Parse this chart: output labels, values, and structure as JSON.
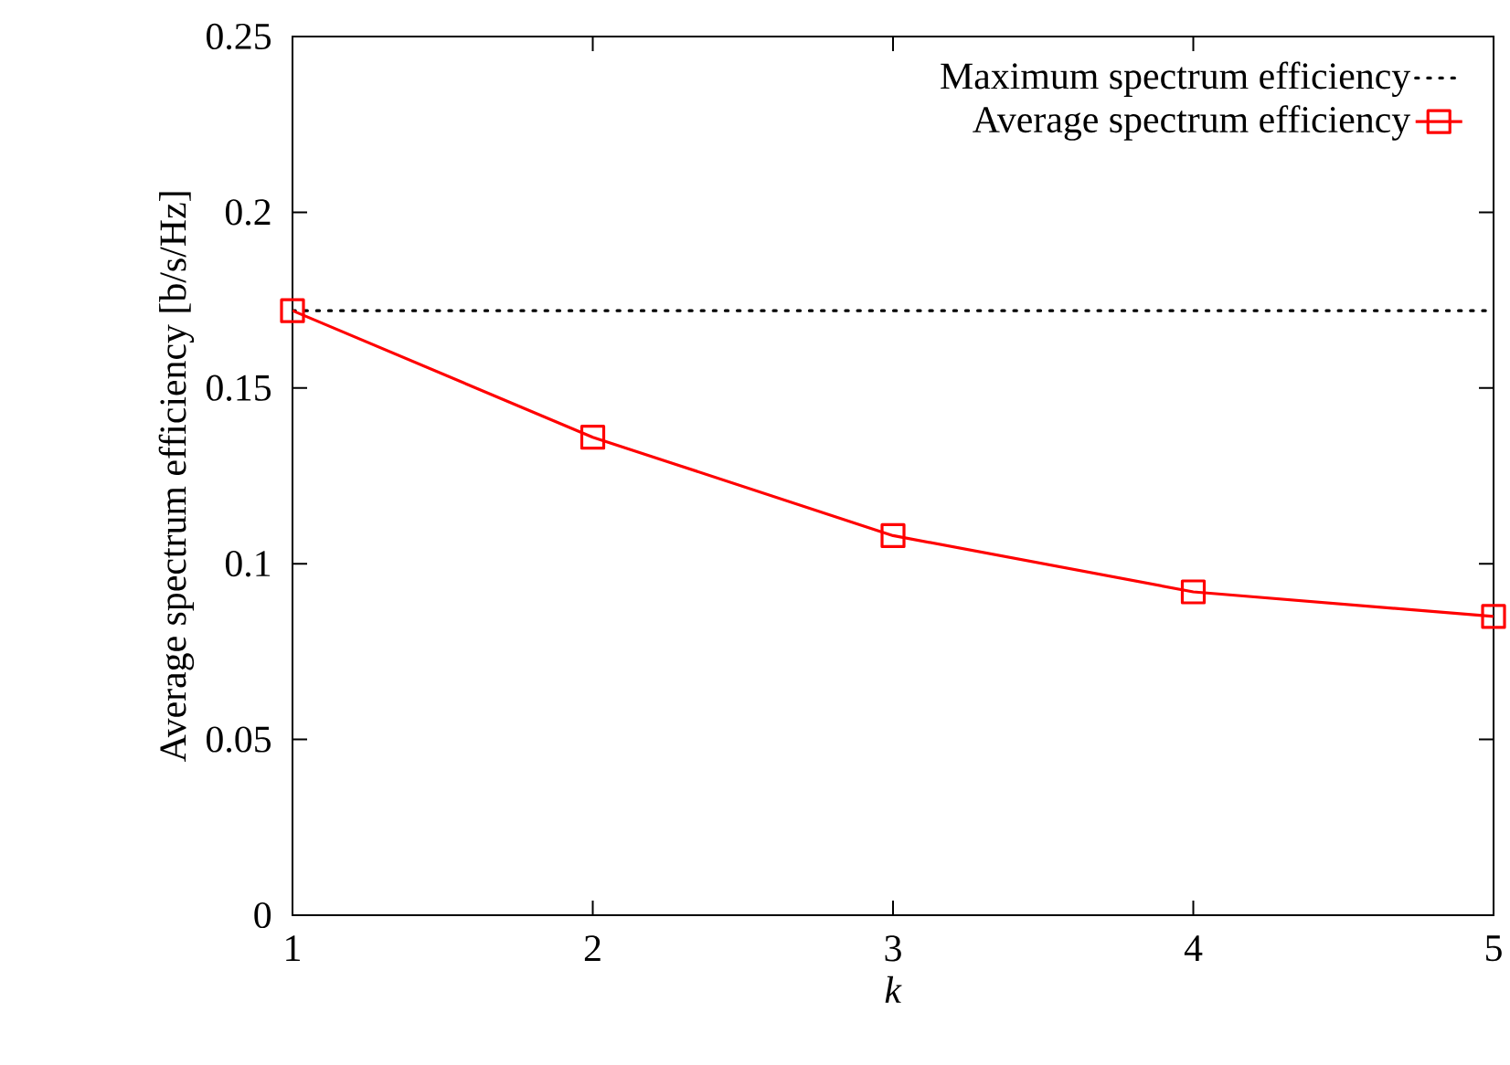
{
  "chart_data": {
    "type": "line",
    "xlabel": "*k*",
    "ylabel": "Average spectrum efficiency [b/s/Hz]",
    "x": [
      1,
      2,
      3,
      4,
      5
    ],
    "series": [
      {
        "name": "Maximum spectrum efficiency",
        "color": "#000000",
        "line_style": "dotted",
        "marker": "none",
        "values": [
          0.172,
          0.172,
          0.172,
          0.172,
          0.172
        ]
      },
      {
        "name": "Average spectrum efficiency",
        "color": "#ff0000",
        "line_style": "solid",
        "marker": "square",
        "values": [
          0.172,
          0.136,
          0.108,
          0.092,
          0.085
        ]
      }
    ],
    "xlim": [
      1,
      5
    ],
    "ylim": [
      0,
      0.25
    ],
    "xticks": [
      1,
      2,
      3,
      4,
      5
    ],
    "yticks": [
      0,
      0.05,
      0.1,
      0.15,
      0.2,
      0.25
    ],
    "legend": "top right",
    "grid": false
  }
}
